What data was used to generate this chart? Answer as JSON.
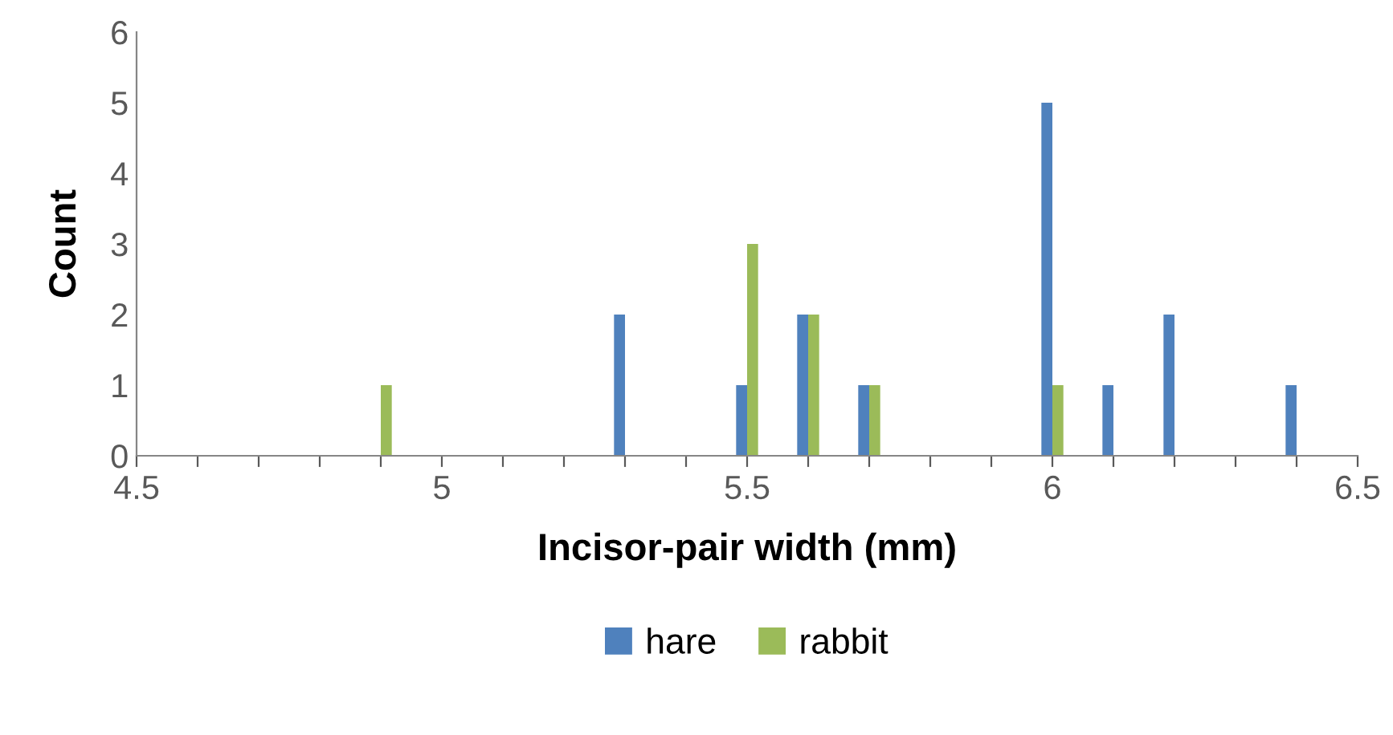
{
  "chart_data": {
    "type": "bar",
    "xlabel": "Incisor-pair width (mm)",
    "ylabel": "Count",
    "x": [
      4.9,
      5.3,
      5.5,
      5.6,
      5.7,
      6.0,
      6.1,
      6.2,
      6.4
    ],
    "series": [
      {
        "name": "hare",
        "color": "#4f81bd",
        "values": [
          null,
          2,
          1,
          2,
          1,
          5,
          1,
          2,
          1
        ]
      },
      {
        "name": "rabbit",
        "color": "#9bbb59",
        "values": [
          1,
          null,
          3,
          2,
          1,
          1,
          null,
          null,
          null
        ]
      }
    ],
    "xlim": [
      4.5,
      6.5
    ],
    "xticks": [
      4.5,
      {
        "value": 4.6,
        "label": null
      },
      {
        "value": 4.7,
        "label": null
      },
      {
        "value": 4.8,
        "label": null
      },
      {
        "value": 4.9,
        "label": null
      },
      5,
      {
        "value": 5.1,
        "label": null
      },
      {
        "value": 5.2,
        "label": null
      },
      {
        "value": 5.3,
        "label": null
      },
      {
        "value": 5.4,
        "label": null
      },
      5.5,
      {
        "value": 5.6,
        "label": null
      },
      {
        "value": 5.7,
        "label": null
      },
      {
        "value": 5.8,
        "label": null
      },
      {
        "value": 5.9,
        "label": null
      },
      6,
      {
        "value": 6.1,
        "label": null
      },
      {
        "value": 6.2,
        "label": null
      },
      {
        "value": 6.3,
        "label": null
      },
      {
        "value": 6.4,
        "label": null
      },
      6.5
    ],
    "ylim": [
      0,
      6
    ],
    "yticks": [
      0,
      1,
      2,
      3,
      4,
      5,
      6
    ],
    "grid": false,
    "legend": "bottom"
  }
}
